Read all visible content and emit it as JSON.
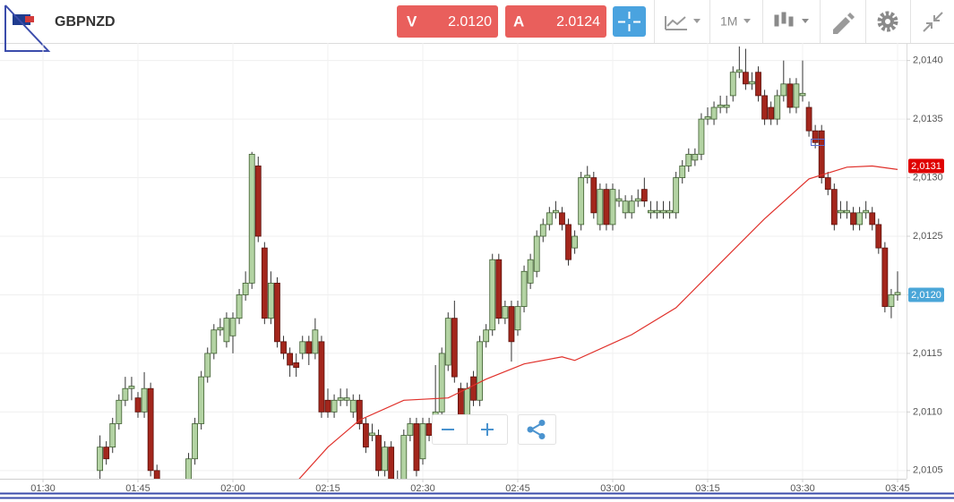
{
  "toolbar": {
    "symbol": "GBPNZD",
    "sell": {
      "label": "V",
      "price": "2.0120"
    },
    "buy": {
      "label": "A",
      "price": "2.0124"
    },
    "timeframe": "1M"
  },
  "chart_data": {
    "type": "candlestick",
    "up_color": "#b3d3a3",
    "down_color": "#a3261c",
    "grid": true,
    "ylim": [
      2.01043,
      2.01415
    ],
    "yticks": [
      {
        "value": 2.0105,
        "label": "2,0105"
      },
      {
        "value": 2.011,
        "label": "2,0110"
      },
      {
        "value": 2.0115,
        "label": "2,0115"
      },
      {
        "value": 2.012,
        "label": "2,0120"
      },
      {
        "value": 2.0125,
        "label": "2,0125"
      },
      {
        "value": 2.013,
        "label": "2,0130"
      },
      {
        "value": 2.0135,
        "label": "2,0135"
      },
      {
        "value": 2.014,
        "label": "2,0140"
      }
    ],
    "xticks": [
      "01:30",
      "01:45",
      "02:00",
      "02:15",
      "02:30",
      "02:45",
      "03:00",
      "03:15",
      "03:30",
      "03:45"
    ],
    "x": [
      "01:39",
      "01:40",
      "01:41",
      "01:42",
      "01:43",
      "01:44",
      "01:45",
      "01:46",
      "01:47",
      "01:48",
      "01:53",
      "01:54",
      "01:55",
      "01:56",
      "01:57",
      "01:58",
      "01:59",
      "02:00",
      "02:01",
      "02:02",
      "02:03",
      "02:04",
      "02:05",
      "02:06",
      "02:07",
      "02:08",
      "02:09",
      "02:10",
      "02:11",
      "02:12",
      "02:13",
      "02:14",
      "02:15",
      "02:16",
      "02:17",
      "02:18",
      "02:19",
      "02:20",
      "02:21",
      "02:22",
      "02:23",
      "02:24",
      "02:25",
      "02:26",
      "02:27",
      "02:28",
      "02:29",
      "02:30",
      "02:31",
      "02:32",
      "02:33",
      "02:34",
      "02:35",
      "02:36",
      "02:37",
      "02:38",
      "02:39",
      "02:40",
      "02:41",
      "02:42",
      "02:43",
      "02:44",
      "02:45",
      "02:46",
      "02:47",
      "02:48",
      "02:49",
      "02:50",
      "02:51",
      "02:52",
      "02:53",
      "02:54",
      "02:55",
      "02:56",
      "02:57",
      "02:58",
      "02:59",
      "03:00",
      "03:01",
      "03:02",
      "03:03",
      "03:04",
      "03:05",
      "03:06",
      "03:07",
      "03:08",
      "03:09",
      "03:10",
      "03:11",
      "03:12",
      "03:13",
      "03:14",
      "03:15",
      "03:16",
      "03:17",
      "03:18",
      "03:19",
      "03:20",
      "03:21",
      "03:22",
      "03:23",
      "03:24",
      "03:25",
      "03:26",
      "03:27",
      "03:28",
      "03:29",
      "03:30",
      "03:31",
      "03:32",
      "03:33",
      "03:34",
      "03:35",
      "03:36",
      "03:37",
      "03:38",
      "03:39",
      "03:40",
      "03:41",
      "03:42",
      "03:43",
      "03:44",
      "03:45"
    ],
    "open": [
      2.0105,
      2.0107,
      2.0107,
      2.0109,
      2.0111,
      2.0112,
      2.01112,
      2.011,
      2.0112,
      2.0105,
      2.0104,
      2.0106,
      2.0109,
      2.0113,
      2.0115,
      2.0117,
      2.0116,
      2.01165,
      2.0118,
      2.012,
      2.0121,
      2.0131,
      2.0124,
      2.0118,
      2.0121,
      2.0116,
      2.0115,
      2.01142,
      2.0115,
      2.0116,
      2.0115,
      2.0116,
      2.0111,
      2.011,
      2.0111,
      2.0111,
      2.011,
      2.0111,
      2.0109,
      2.0108,
      2.0108,
      2.0105,
      2.0107,
      2.0104,
      2.0104,
      2.0108,
      2.0109,
      2.0106,
      2.0109,
      2.0108,
      2.011,
      2.0114,
      2.0118,
      2.0112,
      2.0109,
      2.0113,
      2.0111,
      2.0116,
      2.0117,
      2.0123,
      2.0118,
      2.0119,
      2.0117,
      2.0119,
      2.0121,
      2.0122,
      2.0125,
      2.0126,
      2.0127,
      2.0127,
      2.0126,
      2.0124,
      2.0126,
      2.013,
      2.013,
      2.0126,
      2.0129,
      2.0126,
      2.0128,
      2.0127,
      2.0127,
      2.0128,
      2.0129,
      2.0127,
      2.0127,
      2.0127,
      2.0127,
      2.0127,
      2.013,
      2.0131,
      2.01315,
      2.0132,
      2.0135,
      2.0135,
      2.0136,
      2.0136,
      2.0137,
      2.0139,
      2.0139,
      2.0138,
      2.0139,
      2.0137,
      2.0136,
      2.0135,
      2.0137,
      2.0138,
      2.0136,
      2.0137,
      2.0136,
      2.0134,
      2.0134,
      2.013,
      2.0129,
      2.0127,
      2.0127,
      2.0127,
      2.0126,
      2.0127,
      2.0127,
      2.0126,
      2.0124,
      2.0119,
      2.012
    ],
    "high": [
      2.0108,
      2.01075,
      2.01095,
      2.01115,
      2.0113,
      2.0113,
      2.01117,
      2.01134,
      2.01125,
      2.01055,
      2.01065,
      2.01095,
      2.01135,
      2.01155,
      2.01175,
      2.0118,
      2.01185,
      2.01185,
      2.01205,
      2.0122,
      2.01322,
      2.01318,
      2.01245,
      2.0122,
      2.01215,
      2.01165,
      2.01155,
      2.0115,
      2.01165,
      2.01165,
      2.0118,
      2.01165,
      2.0112,
      2.01115,
      2.0112,
      2.0112,
      2.01115,
      2.01115,
      2.01095,
      2.0109,
      2.01085,
      2.01075,
      2.01075,
      2.0105,
      2.01085,
      2.01095,
      2.01095,
      2.01095,
      2.01095,
      2.0114,
      2.01155,
      2.01185,
      2.01195,
      2.01125,
      2.01125,
      2.01135,
      2.01165,
      2.01175,
      2.01235,
      2.01235,
      2.01195,
      2.01195,
      2.01195,
      2.01225,
      2.01235,
      2.01255,
      2.01265,
      2.01275,
      2.0128,
      2.01275,
      2.01265,
      2.01255,
      2.01305,
      2.0131,
      2.01305,
      2.01295,
      2.01295,
      2.01295,
      2.0129,
      2.01285,
      2.01285,
      2.0129,
      2.013,
      2.0128,
      2.0128,
      2.0128,
      2.0128,
      2.01305,
      2.01315,
      2.01325,
      2.01325,
      2.01355,
      2.0136,
      2.01365,
      2.0137,
      2.0137,
      2.01395,
      2.01412,
      2.0141,
      2.0139,
      2.01395,
      2.01375,
      2.01365,
      2.01375,
      2.014,
      2.01385,
      2.01385,
      2.014,
      2.01365,
      2.01345,
      2.01345,
      2.01305,
      2.01295,
      2.0128,
      2.0128,
      2.01275,
      2.01275,
      2.0128,
      2.01275,
      2.01265,
      2.01245,
      2.01205,
      2.0122
    ],
    "low": [
      2.0104,
      2.01055,
      2.01065,
      2.01085,
      2.01105,
      2.0111,
      2.01095,
      2.01095,
      2.01045,
      2.01035,
      2.01035,
      2.01055,
      2.01085,
      2.01125,
      2.01145,
      2.01165,
      2.01155,
      2.0115,
      2.01175,
      2.01195,
      2.01205,
      2.01245,
      2.01175,
      2.01175,
      2.01155,
      2.01145,
      2.0113,
      2.0113,
      2.01145,
      2.0114,
      2.01145,
      2.01095,
      2.01095,
      2.01095,
      2.01105,
      2.01105,
      2.01095,
      2.01085,
      2.01065,
      2.01075,
      2.01045,
      2.01045,
      2.01035,
      2.01035,
      2.01035,
      2.01075,
      2.01045,
      2.01055,
      2.01075,
      2.01075,
      2.01095,
      2.01135,
      2.01125,
      2.01085,
      2.01085,
      2.01105,
      2.01105,
      2.01155,
      2.01165,
      2.01175,
      2.01175,
      2.01143,
      2.01165,
      2.01185,
      2.01205,
      2.01215,
      2.01245,
      2.01255,
      2.01265,
      2.01255,
      2.01225,
      2.01235,
      2.01255,
      2.01295,
      2.01265,
      2.01255,
      2.01255,
      2.01255,
      2.01275,
      2.01265,
      2.01265,
      2.01275,
      2.01275,
      2.01265,
      2.01265,
      2.01265,
      2.01265,
      2.01265,
      2.01295,
      2.01305,
      2.0131,
      2.01315,
      2.01345,
      2.01345,
      2.01355,
      2.01355,
      2.01365,
      2.01385,
      2.01375,
      2.01375,
      2.01365,
      2.01345,
      2.01345,
      2.01345,
      2.01365,
      2.01355,
      2.01355,
      2.01365,
      2.01335,
      2.01325,
      2.01295,
      2.01285,
      2.01255,
      2.01265,
      2.01265,
      2.01255,
      2.01255,
      2.01265,
      2.01255,
      2.01235,
      2.01185,
      2.0118,
      2.01195
    ],
    "close": [
      2.0107,
      2.0106,
      2.0109,
      2.0111,
      2.0112,
      2.01122,
      2.011,
      2.0112,
      2.0105,
      2.0104,
      2.0106,
      2.0109,
      2.0113,
      2.0115,
      2.0117,
      2.01172,
      2.0118,
      2.0118,
      2.012,
      2.0121,
      2.0132,
      2.0125,
      2.0118,
      2.0121,
      2.0116,
      2.0115,
      2.0114,
      2.01138,
      2.0116,
      2.0115,
      2.0117,
      2.011,
      2.011,
      2.0111,
      2.01112,
      2.01112,
      2.0111,
      2.0109,
      2.0107,
      2.01082,
      2.0105,
      2.0107,
      2.0104,
      2.01042,
      2.0108,
      2.0109,
      2.0105,
      2.0109,
      2.0108,
      2.011,
      2.0115,
      2.0118,
      2.0113,
      2.0109,
      2.0112,
      2.0111,
      2.0116,
      2.0117,
      2.0123,
      2.0118,
      2.0119,
      2.0116,
      2.0119,
      2.0122,
      2.0123,
      2.0125,
      2.0126,
      2.0127,
      2.01272,
      2.0126,
      2.0123,
      2.0125,
      2.013,
      2.01302,
      2.0127,
      2.0129,
      2.0126,
      2.0129,
      2.01282,
      2.0128,
      2.0128,
      2.01282,
      2.0128,
      2.01272,
      2.01272,
      2.01272,
      2.01272,
      2.013,
      2.0131,
      2.0132,
      2.0132,
      2.0135,
      2.01352,
      2.0136,
      2.01362,
      2.01362,
      2.0139,
      2.01392,
      2.0138,
      2.01382,
      2.0137,
      2.0135,
      2.0135,
      2.0137,
      2.0138,
      2.0136,
      2.0138,
      2.01372,
      2.0134,
      2.0133,
      2.013,
      2.0129,
      2.0126,
      2.01272,
      2.01272,
      2.0126,
      2.0127,
      2.01272,
      2.0126,
      2.0124,
      2.0119,
      2.012,
      2.01202
    ],
    "ma": {
      "color": "#e0302a",
      "x": [
        "02:10",
        "02:15",
        "02:20",
        "02:27",
        "02:34",
        "02:40",
        "02:46",
        "02:52",
        "02:54",
        "03:03",
        "03:10",
        "03:17",
        "03:24",
        "03:31",
        "03:37",
        "03:41",
        "03:45"
      ],
      "values": [
        2.0104,
        2.0107,
        2.01093,
        2.0111,
        2.01112,
        2.01128,
        2.01141,
        2.01147,
        2.01144,
        2.01166,
        2.01189,
        2.01227,
        2.01265,
        2.01299,
        2.01309,
        2.0131,
        2.01307
      ]
    },
    "price_labels": [
      {
        "value": 2.0131,
        "label": "2,0131",
        "color": "#e00000"
      },
      {
        "value": 2.012,
        "label": "2,0120",
        "color": "#4aa6d8"
      }
    ]
  }
}
